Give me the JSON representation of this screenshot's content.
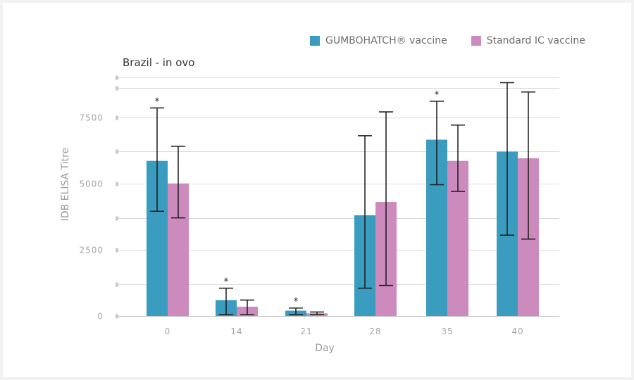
{
  "chart_data": {
    "type": "bar",
    "title": "Brazil - in ovo",
    "xlabel": "Day",
    "ylabel": "IDB ELISA Titre",
    "categories": [
      "0",
      "14",
      "21",
      "28",
      "35",
      "40"
    ],
    "ylim": [
      0,
      9000
    ],
    "yticks": [
      0,
      1200,
      2500,
      3700,
      5000,
      6200,
      7500,
      8600,
      9000
    ],
    "ytick_labels": {
      "0": "0",
      "2500": "2500",
      "5000": "5000",
      "7500": "7500"
    },
    "grid": true,
    "legend_position": "top-right",
    "series": [
      {
        "name": "GUMBOHATCH® vaccine",
        "color": "#3a9cbf",
        "values": [
          5850,
          600,
          200,
          3800,
          6650,
          6200
        ],
        "err_low": [
          3950,
          50,
          50,
          1050,
          4950,
          3050
        ],
        "err_high": [
          7850,
          1050,
          300,
          6800,
          8100,
          8800
        ],
        "significant": [
          true,
          true,
          true,
          false,
          true,
          false
        ]
      },
      {
        "name": "Standard IC vaccine",
        "color": "#cd8abd",
        "values": [
          5000,
          350,
          100,
          4300,
          5850,
          5950
        ],
        "err_low": [
          3700,
          50,
          50,
          1150,
          4700,
          2900
        ],
        "err_high": [
          6400,
          600,
          150,
          7700,
          7200,
          8450
        ],
        "significant": [
          false,
          false,
          false,
          false,
          false,
          false
        ]
      }
    ],
    "annotations": [
      "*"
    ]
  }
}
